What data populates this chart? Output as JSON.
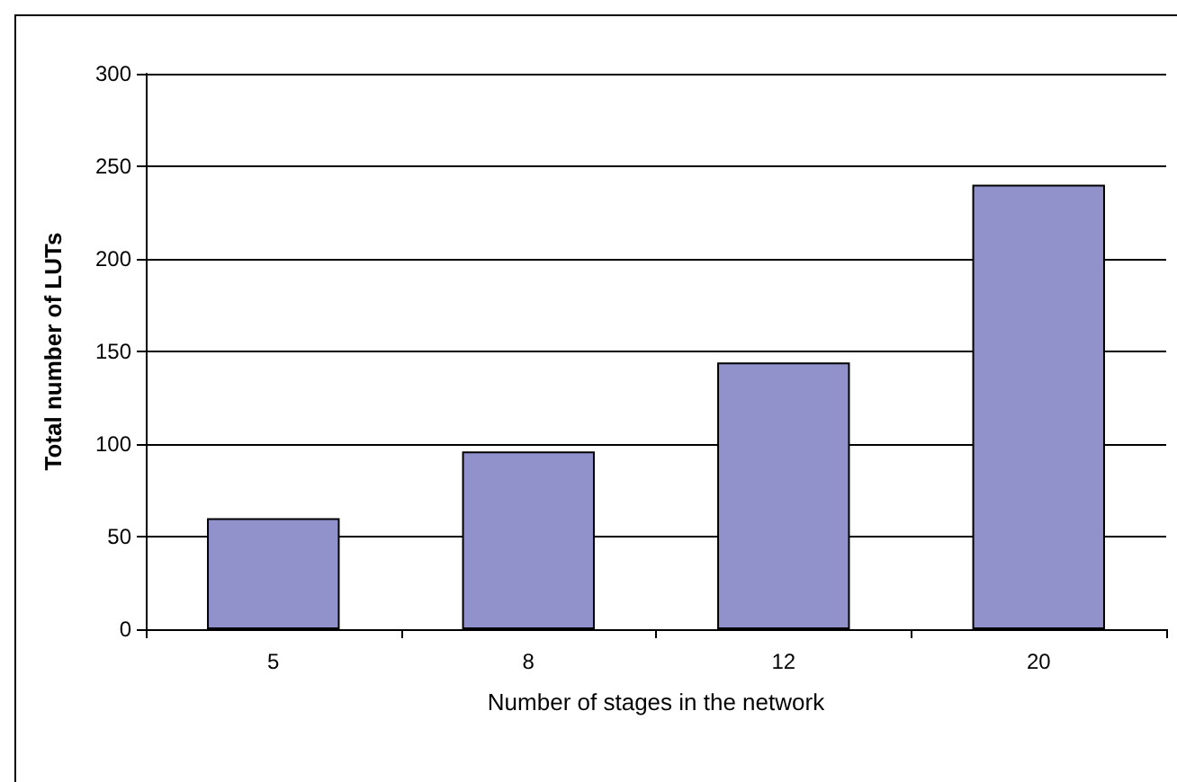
{
  "chart_data": {
    "type": "bar",
    "xlabel": "Number of stages in the network",
    "ylabel": "Total number of LUTs",
    "categories": [
      "5",
      "8",
      "12",
      "20"
    ],
    "values": [
      60,
      96,
      144,
      240
    ],
    "color": "#9191cc",
    "ylim": [
      0,
      300
    ],
    "yticks": [
      0,
      50,
      100,
      150,
      200,
      250,
      300
    ],
    "grid": "y"
  }
}
